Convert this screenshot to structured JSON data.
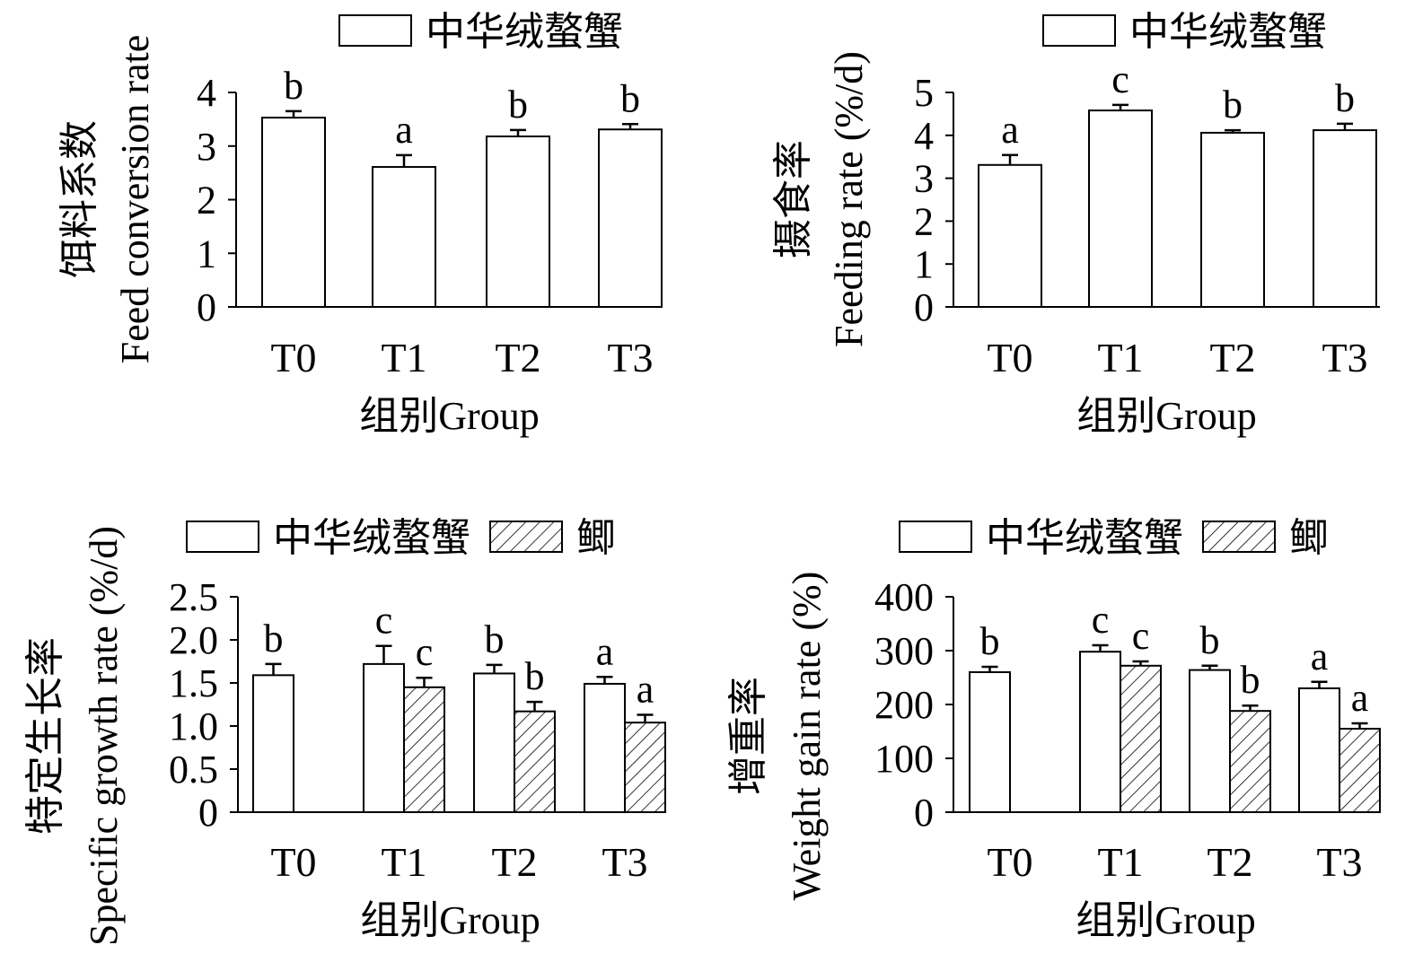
{
  "chart_data": [
    {
      "type": "bar",
      "title": "",
      "xlabel": "组别Group",
      "ylabel_cn": "饵料系数",
      "ylabel": "Feed conversion rate",
      "categories": [
        "T0",
        "T1",
        "T2",
        "T3"
      ],
      "ylim": [
        0,
        4
      ],
      "yticks": [
        "0",
        "1",
        "2",
        "3",
        "4"
      ],
      "legend": "top-right",
      "series": [
        {
          "name": "中华绒螯蟹",
          "pattern": "open",
          "values": [
            3.53,
            2.61,
            3.18,
            3.31
          ],
          "errors": [
            0.12,
            0.22,
            0.12,
            0.1
          ],
          "letters": [
            "b",
            "a",
            "b",
            "b"
          ]
        }
      ]
    },
    {
      "type": "bar",
      "title": "",
      "xlabel": "组别Group",
      "ylabel_cn": "摄食率",
      "ylabel": "Feeding rate (%/d)",
      "categories": [
        "T0",
        "T1",
        "T2",
        "T3"
      ],
      "ylim": [
        0,
        5
      ],
      "yticks": [
        "0",
        "1",
        "2",
        "3",
        "4",
        "5"
      ],
      "legend": "top-right",
      "series": [
        {
          "name": "中华绒螯蟹",
          "pattern": "open",
          "values": [
            3.31,
            4.58,
            4.06,
            4.12
          ],
          "errors": [
            0.23,
            0.13,
            0.06,
            0.15
          ],
          "letters": [
            "a",
            "c",
            "b",
            "b"
          ]
        }
      ]
    },
    {
      "type": "bar",
      "title": "",
      "xlabel": "组别Group",
      "ylabel_cn": "特定生长率",
      "ylabel": "Specific growth rate (%/d)",
      "categories": [
        "T0",
        "T1",
        "T2",
        "T3"
      ],
      "ylim": [
        0,
        2.5
      ],
      "yticks": [
        "0",
        "0.5",
        "1.0",
        "1.5",
        "2.0",
        "2.5"
      ],
      "legend": "top",
      "series": [
        {
          "name": "中华绒螯蟹",
          "pattern": "open",
          "values": [
            1.59,
            1.72,
            1.61,
            1.49
          ],
          "errors": [
            0.13,
            0.21,
            0.1,
            0.08
          ],
          "letters": [
            "b",
            "c",
            "b",
            "a"
          ]
        },
        {
          "name": "鲫",
          "pattern": "hatched",
          "values": [
            null,
            1.45,
            1.17,
            1.04
          ],
          "errors": [
            null,
            0.11,
            0.11,
            0.09
          ],
          "letters": [
            "",
            "c",
            "b",
            "a"
          ]
        }
      ]
    },
    {
      "type": "bar",
      "title": "",
      "xlabel": "组别Group",
      "ylabel_cn": "增重率",
      "ylabel": "Weight gain rate (%)",
      "categories": [
        "T0",
        "T1",
        "T2",
        "T3"
      ],
      "ylim": [
        0,
        400
      ],
      "yticks": [
        "0",
        "100",
        "200",
        "300",
        "400"
      ],
      "legend": "top",
      "series": [
        {
          "name": "中华绒螯蟹",
          "pattern": "open",
          "values": [
            260,
            298,
            264,
            230
          ],
          "errors": [
            10,
            12,
            8,
            12
          ],
          "letters": [
            "b",
            "c",
            "b",
            "a"
          ]
        },
        {
          "name": "鲫",
          "pattern": "hatched",
          "values": [
            null,
            272,
            188,
            155
          ],
          "errors": [
            null,
            8,
            10,
            10
          ],
          "letters": [
            "",
            "c",
            "b",
            "a"
          ]
        }
      ]
    }
  ]
}
